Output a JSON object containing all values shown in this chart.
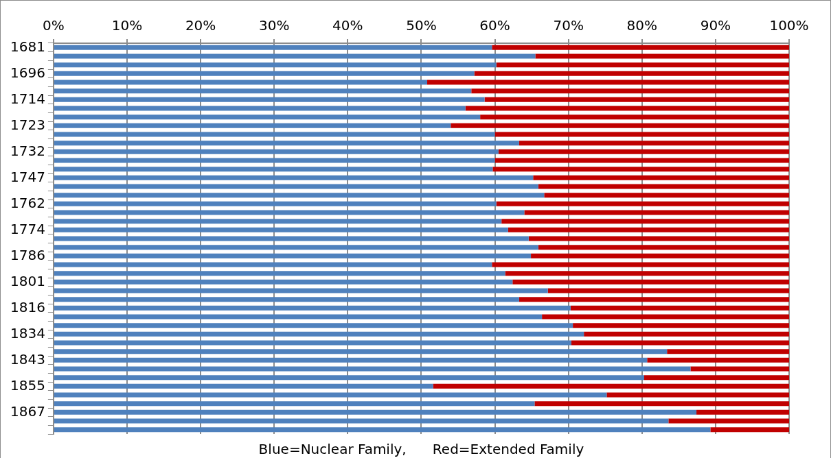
{
  "chart_data": {
    "type": "bar",
    "orientation": "horizontal",
    "stacked": true,
    "categories": [
      "1681",
      null,
      null,
      "1696",
      null,
      null,
      "1714",
      null,
      null,
      "1723",
      null,
      null,
      "1732",
      null,
      null,
      "1747",
      null,
      null,
      "1762",
      null,
      null,
      "1774",
      null,
      null,
      "1786",
      null,
      null,
      "1801",
      null,
      null,
      "1816",
      null,
      null,
      "1834",
      null,
      null,
      "1843",
      null,
      null,
      "1855",
      null,
      null,
      "1867",
      null,
      null
    ],
    "series": [
      {
        "color": "#4f81bd",
        "values": [
          59.6,
          65.5,
          60.2,
          57.2,
          50.8,
          56.8,
          58.6,
          56.0,
          58.0,
          54.0,
          60.0,
          63.3,
          60.5,
          60.0,
          59.7,
          65.2,
          65.9,
          66.7,
          60.2,
          64.0,
          60.9,
          61.8,
          64.6,
          65.9,
          64.9,
          59.6,
          61.4,
          62.4,
          67.2,
          63.3,
          70.3,
          66.4,
          70.6,
          72.1,
          70.4,
          83.4,
          80.7,
          86.6,
          80.3,
          51.6,
          75.2,
          65.4,
          87.4,
          83.6,
          89.3
        ]
      },
      {
        "color": "#c00000",
        "values": [
          40.4,
          34.5,
          39.8,
          42.8,
          49.2,
          43.2,
          41.4,
          44.0,
          42.0,
          46.0,
          40.0,
          36.7,
          39.5,
          40.0,
          40.3,
          34.8,
          34.1,
          33.3,
          39.8,
          36.0,
          39.1,
          38.2,
          35.4,
          34.1,
          35.1,
          40.4,
          38.6,
          37.6,
          32.8,
          36.7,
          29.7,
          33.6,
          29.4,
          27.9,
          29.6,
          16.6,
          19.3,
          13.4,
          19.7,
          48.4,
          24.8,
          34.6,
          12.6,
          16.4,
          10.7
        ]
      }
    ],
    "xlim": [
      0,
      100
    ],
    "xticks": [
      {
        "value": 0,
        "label": "0%"
      },
      {
        "value": 10,
        "label": "10%"
      },
      {
        "value": 20,
        "label": "20%"
      },
      {
        "value": 30,
        "label": "30%"
      },
      {
        "value": 40,
        "label": "40%"
      },
      {
        "value": 50,
        "label": "50%"
      },
      {
        "value": 60,
        "label": "60%"
      },
      {
        "value": 70,
        "label": "70%"
      },
      {
        "value": 80,
        "label": "80%"
      },
      {
        "value": 90,
        "label": "90%"
      },
      {
        "value": 100,
        "label": "100%"
      }
    ],
    "grid": "x",
    "legend": false,
    "annotations": [
      "Blue=Nuclear Family,      Red=Extended Family"
    ]
  }
}
